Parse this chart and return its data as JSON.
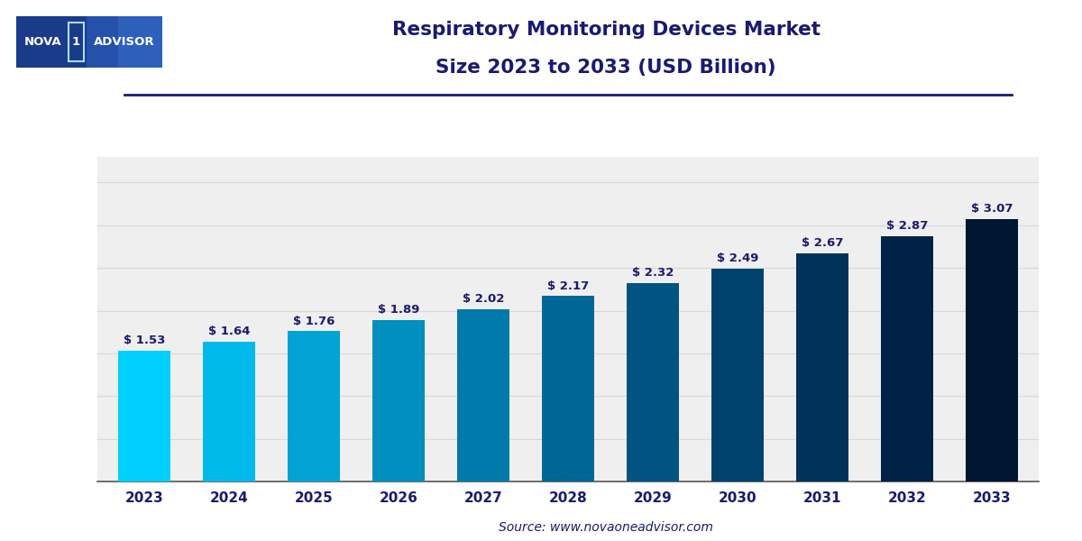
{
  "years": [
    "2023",
    "2024",
    "2025",
    "2026",
    "2027",
    "2028",
    "2029",
    "2030",
    "2031",
    "2032",
    "2033"
  ],
  "values": [
    1.53,
    1.64,
    1.76,
    1.89,
    2.02,
    2.17,
    2.32,
    2.49,
    2.67,
    2.87,
    3.07
  ],
  "bar_colors": [
    "#00CFFF",
    "#00BAEB",
    "#00A3D4",
    "#008FBF",
    "#007AAA",
    "#006696",
    "#005482",
    "#00426E",
    "#00325A",
    "#002246",
    "#001532"
  ],
  "title_line1": "Respiratory Monitoring Devices Market",
  "title_line2": "Size 2023 to 2033 (USD Billion)",
  "title_color": "#1a1a6e",
  "source_text": "Source: www.novaoneadvisor.com",
  "background_color": "#ffffff",
  "plot_bg_color": "#efefef",
  "grid_color": "#d8d8d8",
  "bar_label_color": "#1a1a6e",
  "xlabel_color": "#1a1a6e",
  "ylim": [
    0,
    3.8
  ],
  "separator_color": "#1a1a6e",
  "logo_bg_left": "#1a3a8a",
  "logo_bg_right": "#2060b0"
}
